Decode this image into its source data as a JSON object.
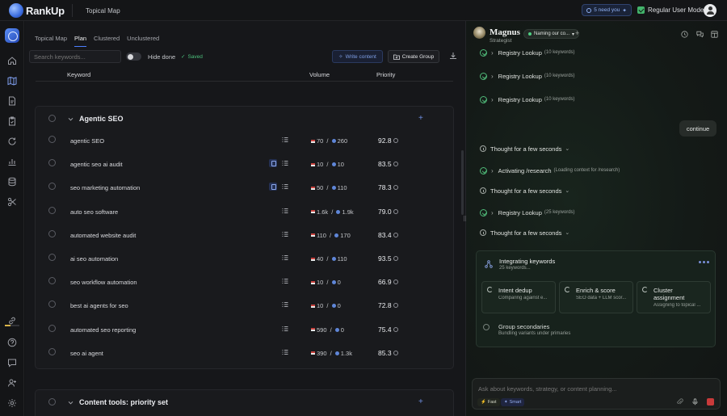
{
  "app": {
    "logo_text": "RankUp",
    "page_crumb": "Topical Map",
    "need_you": "5 need you",
    "regular_user_mode": "Regular User Mode"
  },
  "tabs": [
    {
      "label": "Topical Map",
      "active": false
    },
    {
      "label": "Plan",
      "active": true
    },
    {
      "label": "Clustered",
      "active": false
    },
    {
      "label": "Unclustered",
      "active": false
    }
  ],
  "toolbar": {
    "search_placeholder": "Search keywords...",
    "hide_done": "Hide done",
    "saved": "Saved",
    "write_content": "Write content",
    "create_group": "Create Group"
  },
  "table": {
    "headers": {
      "keyword": "Keyword",
      "volume": "Volume",
      "priority": "Priority"
    }
  },
  "groups": [
    {
      "title": "Agentic SEO",
      "rows": [
        {
          "keyword": "agentic SEO",
          "us": "70",
          "global": "260",
          "priority": "92.8",
          "doc": false
        },
        {
          "keyword": "agentic seo ai audit",
          "us": "10",
          "global": "10",
          "priority": "83.5",
          "doc": true
        },
        {
          "keyword": "seo marketing automation",
          "us": "50",
          "global": "110",
          "priority": "78.3",
          "doc": true
        },
        {
          "keyword": "auto seo software",
          "us": "1.6k",
          "global": "1.9k",
          "priority": "79.0",
          "doc": false
        },
        {
          "keyword": "automated website audit",
          "us": "110",
          "global": "170",
          "priority": "83.4",
          "doc": false
        },
        {
          "keyword": "ai seo automation",
          "us": "40",
          "global": "110",
          "priority": "93.5",
          "doc": false
        },
        {
          "keyword": "seo workflow automation",
          "us": "10",
          "global": "0",
          "priority": "66.9",
          "doc": false
        },
        {
          "keyword": "best ai agents for seo",
          "us": "10",
          "global": "0",
          "priority": "72.8",
          "doc": false
        },
        {
          "keyword": "automated seo reporting",
          "us": "590",
          "global": "0",
          "priority": "75.4",
          "doc": false
        },
        {
          "keyword": "seo ai agent",
          "us": "390",
          "global": "1.3k",
          "priority": "85.3",
          "doc": false
        }
      ]
    },
    {
      "title": "Content tools: priority set",
      "rows": []
    }
  ],
  "chat": {
    "agent_name": "Magnus",
    "agent_role": "Strategist",
    "status_pill": "Naming our co...",
    "items": [
      {
        "type": "done",
        "label": "Registry Lookup",
        "sub": "(10 keywords)"
      },
      {
        "type": "done",
        "label": "Registry Lookup",
        "sub": "(10 keywords)"
      },
      {
        "type": "done",
        "label": "Registry Lookup",
        "sub": "(10 keywords)"
      },
      {
        "type": "thought",
        "label": "Thought for a few seconds"
      },
      {
        "type": "done",
        "label": "Activating /research",
        "sub": "(Loading context for /research)"
      },
      {
        "type": "thought",
        "label": "Thought for a few seconds"
      },
      {
        "type": "done",
        "label": "Registry Lookup",
        "sub": "(25 keywords)"
      },
      {
        "type": "thought",
        "label": "Thought for a few seconds"
      }
    ],
    "user_message": "continue",
    "integrating": {
      "title": "Integrating keywords",
      "subtitle": "25 keywords...",
      "steps": [
        {
          "title": "Intent dedup",
          "sub": "Comparing against e..."
        },
        {
          "title": "Enrich & score",
          "sub": "SEO data + LLM scor..."
        },
        {
          "title": "Cluster assignment",
          "sub": "Assigning to topical ..."
        },
        {
          "title": "Group secondaries",
          "sub": "Bundling variants under primaries"
        }
      ]
    },
    "composer_placeholder": "Ask about keywords, strategy, or content planning...",
    "chip_fast": "Fast",
    "chip_smart": "Smart"
  },
  "icons": {
    "rail": [
      "home-icon",
      "map-icon",
      "document-icon",
      "clipboard-icon",
      "refresh-icon",
      "bar-chart-icon",
      "database-icon",
      "scissors-icon",
      "link-icon",
      "help-icon",
      "message-icon",
      "user-plus-icon",
      "settings-icon"
    ],
    "accent": "#4d7fff",
    "success": "#4fb978",
    "danger": "#c83a3a"
  }
}
